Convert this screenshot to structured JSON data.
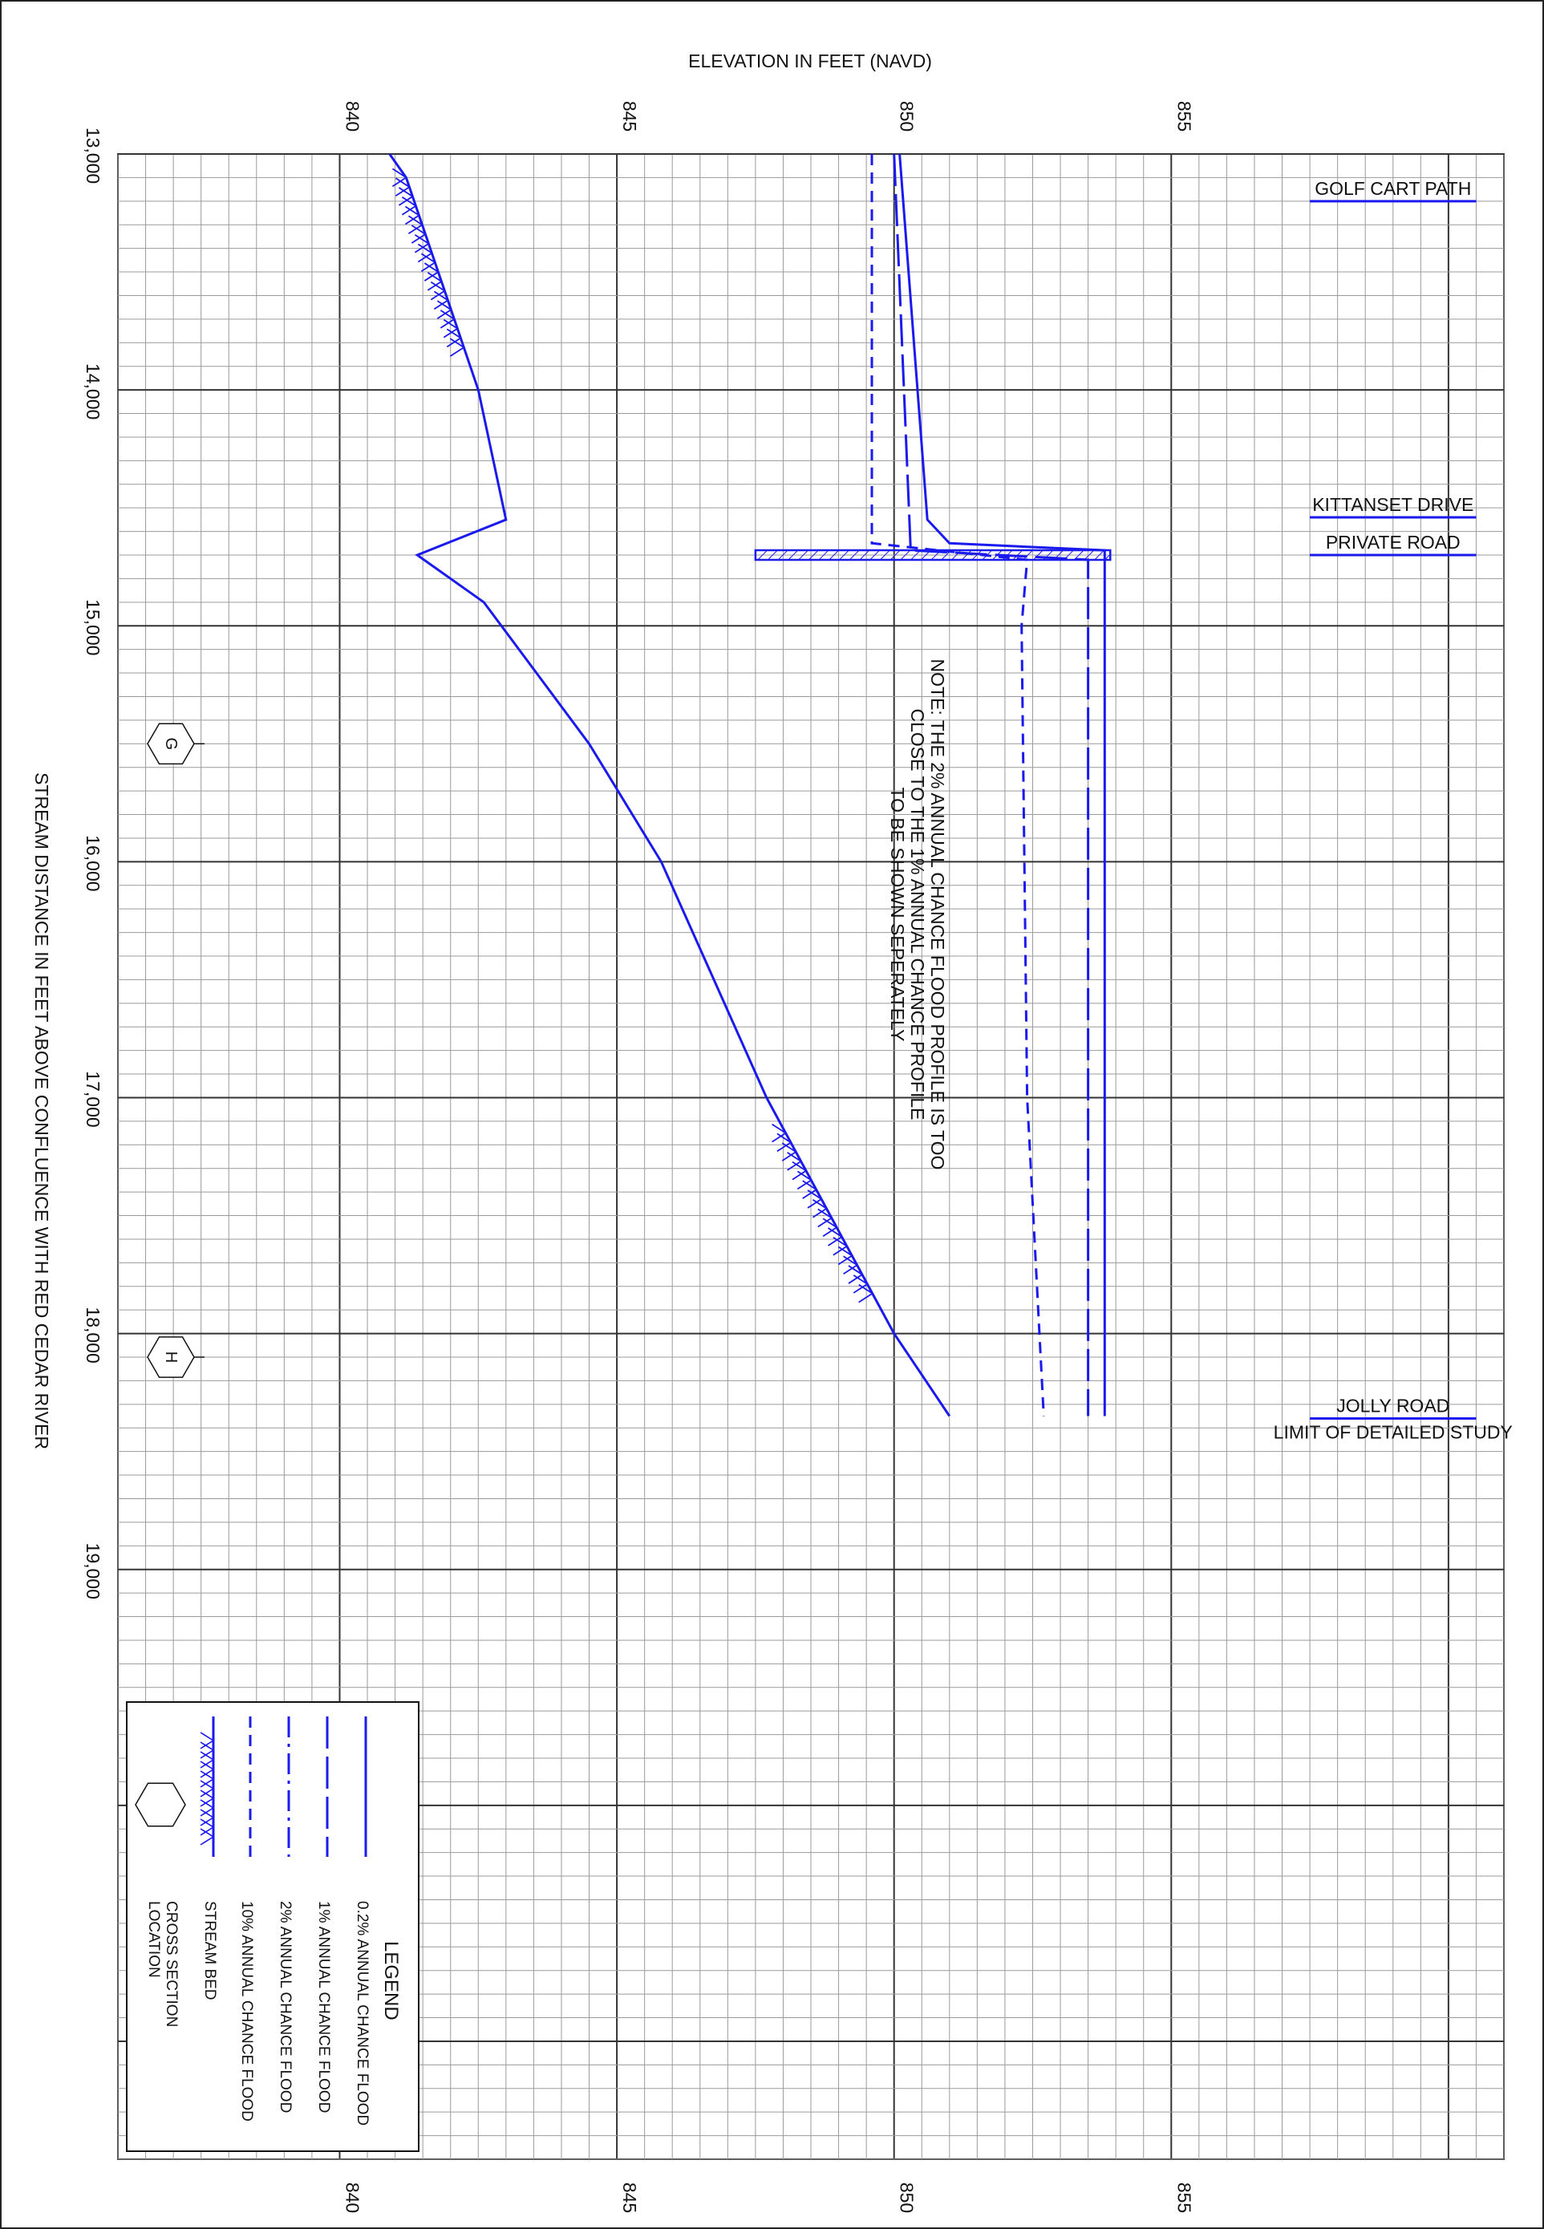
{
  "chart_data": {
    "type": "line",
    "orientation": "rotated-90-clockwise",
    "xlabel": "STREAM DISTANCE IN FEET ABOVE CONFLUENCE WITH RED CEDAR RIVER",
    "ylabel": "ELEVATION IN FEET (NAVD)",
    "xlim": [
      13000,
      21500
    ],
    "ylim": [
      836,
      861
    ],
    "x_ticks": [
      {
        "value": 13000,
        "label": "13,000"
      },
      {
        "value": 14000,
        "label": "14,000"
      },
      {
        "value": 15000,
        "label": "15,000"
      },
      {
        "value": 16000,
        "label": "16,000"
      },
      {
        "value": 17000,
        "label": "17,000"
      },
      {
        "value": 18000,
        "label": "18,000"
      },
      {
        "value": 19000,
        "label": "19,000"
      }
    ],
    "y_ticks": [
      {
        "value": 840,
        "label": "840"
      },
      {
        "value": 845,
        "label": "845"
      },
      {
        "value": 850,
        "label": "850"
      },
      {
        "value": 855,
        "label": "855"
      }
    ],
    "grid": true,
    "series": [
      {
        "name": "0.2% ANNUAL CHANCE FLOOD",
        "style": "solid",
        "color": "#1a1aee",
        "x": [
          13000,
          14550,
          14650,
          14680,
          14720,
          18350
        ],
        "y": [
          850.1,
          850.6,
          851.0,
          853.8,
          853.8,
          853.8
        ]
      },
      {
        "name": "1% ANNUAL CHANCE FLOOD",
        "style": "long-dash",
        "color": "#1a1aee",
        "x": [
          13000,
          14680,
          14720,
          18350
        ],
        "y": [
          850.0,
          850.3,
          853.5,
          853.5
        ]
      },
      {
        "name": "2% ANNUAL CHANCE FLOOD",
        "style": "dash-dot",
        "color": "#1a1aee",
        "x": [],
        "y": []
      },
      {
        "name": "10% ANNUAL CHANCE FLOOD",
        "style": "dashed",
        "color": "#1a1aee",
        "x": [
          13000,
          14650,
          14720,
          15000,
          17000,
          18350
        ],
        "y": [
          849.6,
          849.6,
          852.4,
          852.3,
          852.4,
          852.7
        ]
      },
      {
        "name": "STREAM BED",
        "style": "solid-hatched",
        "color": "#1a1aee",
        "x": [
          13000,
          13100,
          14000,
          14550,
          14700,
          14900,
          15500,
          16000,
          17000,
          18000,
          18350
        ],
        "y": [
          840.9,
          841.2,
          842.5,
          843.0,
          841.4,
          842.6,
          844.5,
          845.8,
          847.7,
          850.0,
          851.0
        ]
      }
    ],
    "hatched_ranges": [
      {
        "from": 13100,
        "to": 13850
      },
      {
        "from": 17150,
        "to": 17850
      }
    ],
    "structures": [
      {
        "x": 13200,
        "label": "GOLF CART PATH"
      },
      {
        "x": 14540,
        "label": "KITTANSET DRIVE"
      },
      {
        "x": 14700,
        "label": "PRIVATE ROAD"
      },
      {
        "x": 18360,
        "label": "JOLLY ROAD",
        "sublabel": "LIMIT OF DETAILED STUDY"
      }
    ],
    "bridge": {
      "x": 14700,
      "from_elev": 847.5,
      "to_elev": 853.9
    },
    "cross_sections": [
      {
        "letter": "G",
        "x": 15500
      },
      {
        "letter": "H",
        "x": 18100
      }
    ],
    "note": [
      "NOTE: THE 2% ANNUAL CHANCE FLOOD PROFILE IS TOO",
      "CLOSE TO THE 1% ANNUAL CHANCE PROFILE",
      "TO BE SHOWN SEPERATELY"
    ],
    "legend": {
      "title": "LEGEND",
      "placement": "bottom-left",
      "items": [
        {
          "label": "0.2% ANNUAL CHANCE FLOOD",
          "style": "solid"
        },
        {
          "label": "1% ANNUAL CHANCE FLOOD",
          "style": "long-dash"
        },
        {
          "label": "2% ANNUAL CHANCE FLOOD",
          "style": "dash-dot"
        },
        {
          "label": "10% ANNUAL CHANCE FLOOD",
          "style": "dashed"
        },
        {
          "label": "STREAM BED",
          "style": "solid-hatched"
        },
        {
          "label": "CROSS SECTION",
          "label2": "LOCATION",
          "style": "hexagon"
        }
      ]
    }
  }
}
